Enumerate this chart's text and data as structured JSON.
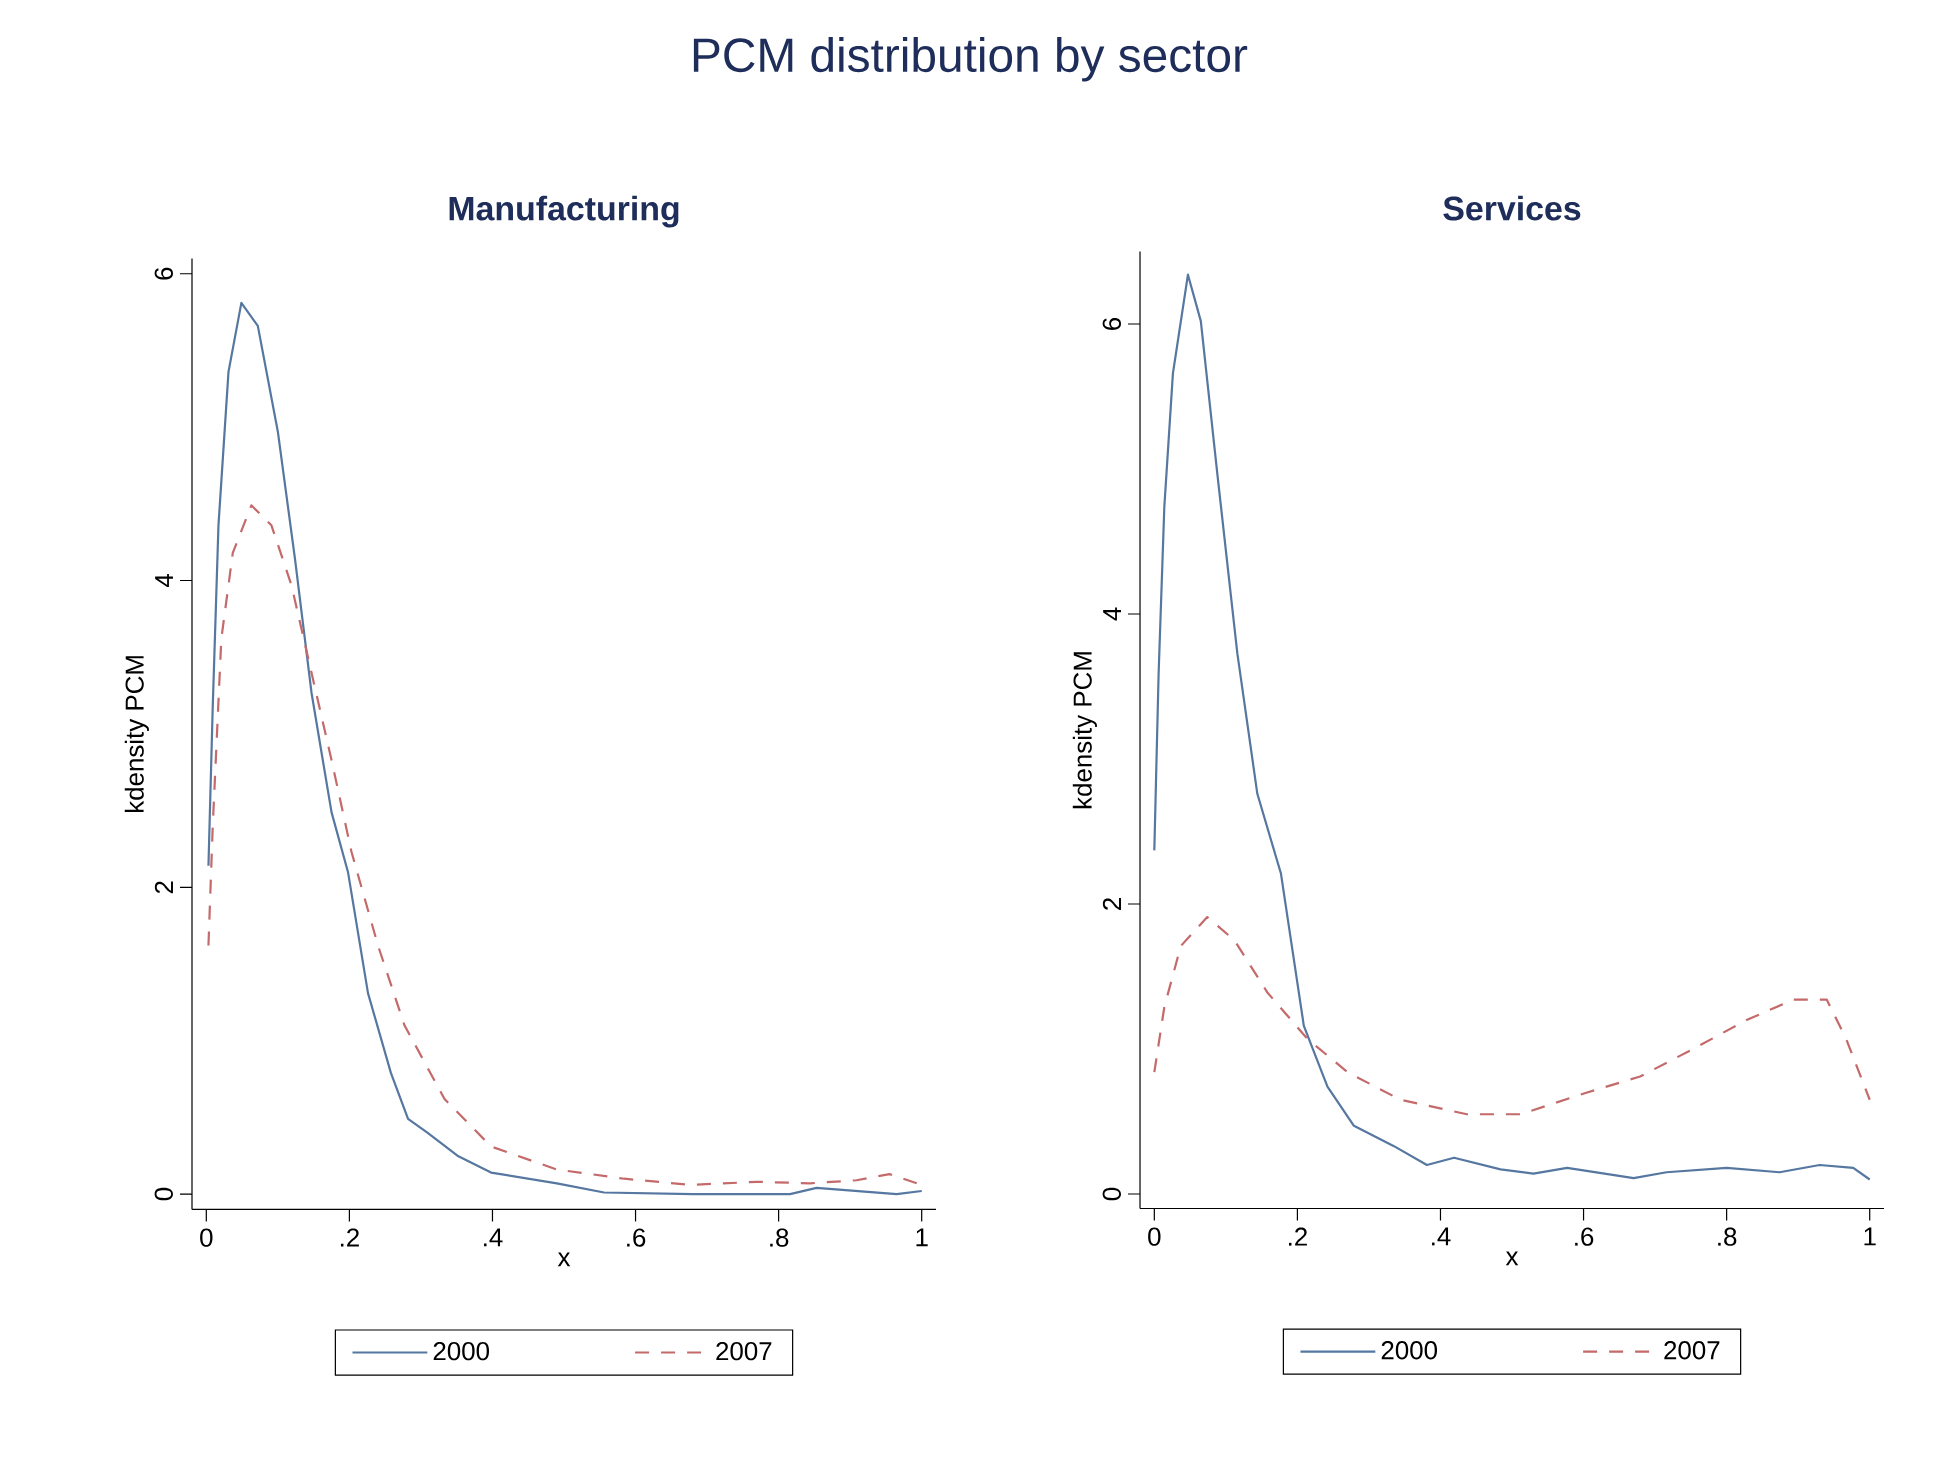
{
  "chart_data": [
    {
      "type": "line",
      "title": "Manufacturing",
      "annotations": [
        "PCM distribution by sector"
      ],
      "xlabel": "x",
      "ylabel": "kdensity PCM",
      "xlim": [
        -0.02,
        1.02
      ],
      "ylim": [
        -0.1,
        6.1
      ],
      "xticks": [
        0,
        {
          "value": 0.2,
          "label": ".2"
        },
        {
          "value": 0.4,
          "label": ".4"
        },
        {
          "value": 0.6,
          "label": ".6"
        },
        {
          "value": 0.8,
          "label": ".8"
        },
        1
      ],
      "yticks": [
        0,
        2,
        4,
        6
      ],
      "legend": "bottom",
      "grid": false,
      "series": [
        {
          "name": "2000",
          "color": "#5577a0",
          "line_style": "solid",
          "x": [
            0.003,
            0.009,
            0.017,
            0.031,
            0.049,
            0.072,
            0.1,
            0.124,
            0.147,
            0.175,
            0.198,
            0.226,
            0.258,
            0.282,
            0.309,
            0.351,
            0.398,
            0.49,
            0.556,
            0.68,
            0.816,
            0.853,
            0.909,
            0.965,
            1
          ],
          "values": [
            2.14,
            3.18,
            4.36,
            5.36,
            5.81,
            5.66,
            4.97,
            4.14,
            3.27,
            2.49,
            2.1,
            1.31,
            0.79,
            0.49,
            0.4,
            0.25,
            0.14,
            0.07,
            0.01,
            0,
            0,
            0.04,
            0.02,
            0,
            0.02
          ]
        },
        {
          "name": "2007",
          "color": "#c46a6a",
          "line_style": "dashed",
          "x": [
            0.003,
            0.009,
            0.021,
            0.037,
            0.063,
            0.091,
            0.119,
            0.147,
            0.175,
            0.203,
            0.24,
            0.277,
            0.333,
            0.398,
            0.49,
            0.584,
            0.677,
            0.77,
            0.844,
            0.909,
            0.955,
            1
          ],
          "values": [
            1.62,
            2.4,
            3.62,
            4.18,
            4.49,
            4.36,
            3.97,
            3.4,
            2.83,
            2.23,
            1.62,
            1.1,
            0.62,
            0.31,
            0.16,
            0.1,
            0.06,
            0.08,
            0.07,
            0.09,
            0.13,
            0.06
          ]
        }
      ]
    },
    {
      "type": "line",
      "title": "Services",
      "xlabel": "x",
      "ylabel": "kdensity PCM",
      "xlim": [
        -0.02,
        1.02
      ],
      "ylim": [
        -0.1,
        6.5
      ],
      "xticks": [
        0,
        {
          "value": 0.2,
          "label": ".2"
        },
        {
          "value": 0.4,
          "label": ".4"
        },
        {
          "value": 0.6,
          "label": ".6"
        },
        {
          "value": 0.8,
          "label": ".8"
        },
        1
      ],
      "yticks": [
        0,
        2,
        4,
        6
      ],
      "legend": "bottom",
      "grid": false,
      "series": [
        {
          "name": "2000",
          "color": "#5577a0",
          "line_style": "solid",
          "x": [
            0,
            0.006,
            0.014,
            0.026,
            0.047,
            0.065,
            0.088,
            0.116,
            0.144,
            0.177,
            0.209,
            0.242,
            0.279,
            0.335,
            0.381,
            0.419,
            0.484,
            0.53,
            0.577,
            0.67,
            0.716,
            0.8,
            0.874,
            0.93,
            0.977,
            1
          ],
          "values": [
            2.37,
            3.59,
            4.74,
            5.66,
            6.34,
            6.02,
            4.97,
            3.73,
            2.76,
            2.21,
            1.16,
            0.74,
            0.47,
            0.33,
            0.2,
            0.25,
            0.17,
            0.14,
            0.18,
            0.11,
            0.15,
            0.18,
            0.15,
            0.2,
            0.18,
            0.1
          ]
        },
        {
          "name": "2007",
          "color": "#c46a6a",
          "line_style": "dashed",
          "x": [
            0,
            0.014,
            0.037,
            0.074,
            0.112,
            0.158,
            0.214,
            0.27,
            0.344,
            0.437,
            0.512,
            0.605,
            0.679,
            0.753,
            0.828,
            0.893,
            0.94,
            0.967,
            1
          ],
          "values": [
            0.84,
            1.29,
            1.71,
            1.91,
            1.75,
            1.39,
            1.07,
            0.84,
            0.65,
            0.55,
            0.55,
            0.7,
            0.81,
            1.0,
            1.2,
            1.34,
            1.34,
            1.07,
            0.65
          ]
        }
      ]
    }
  ]
}
